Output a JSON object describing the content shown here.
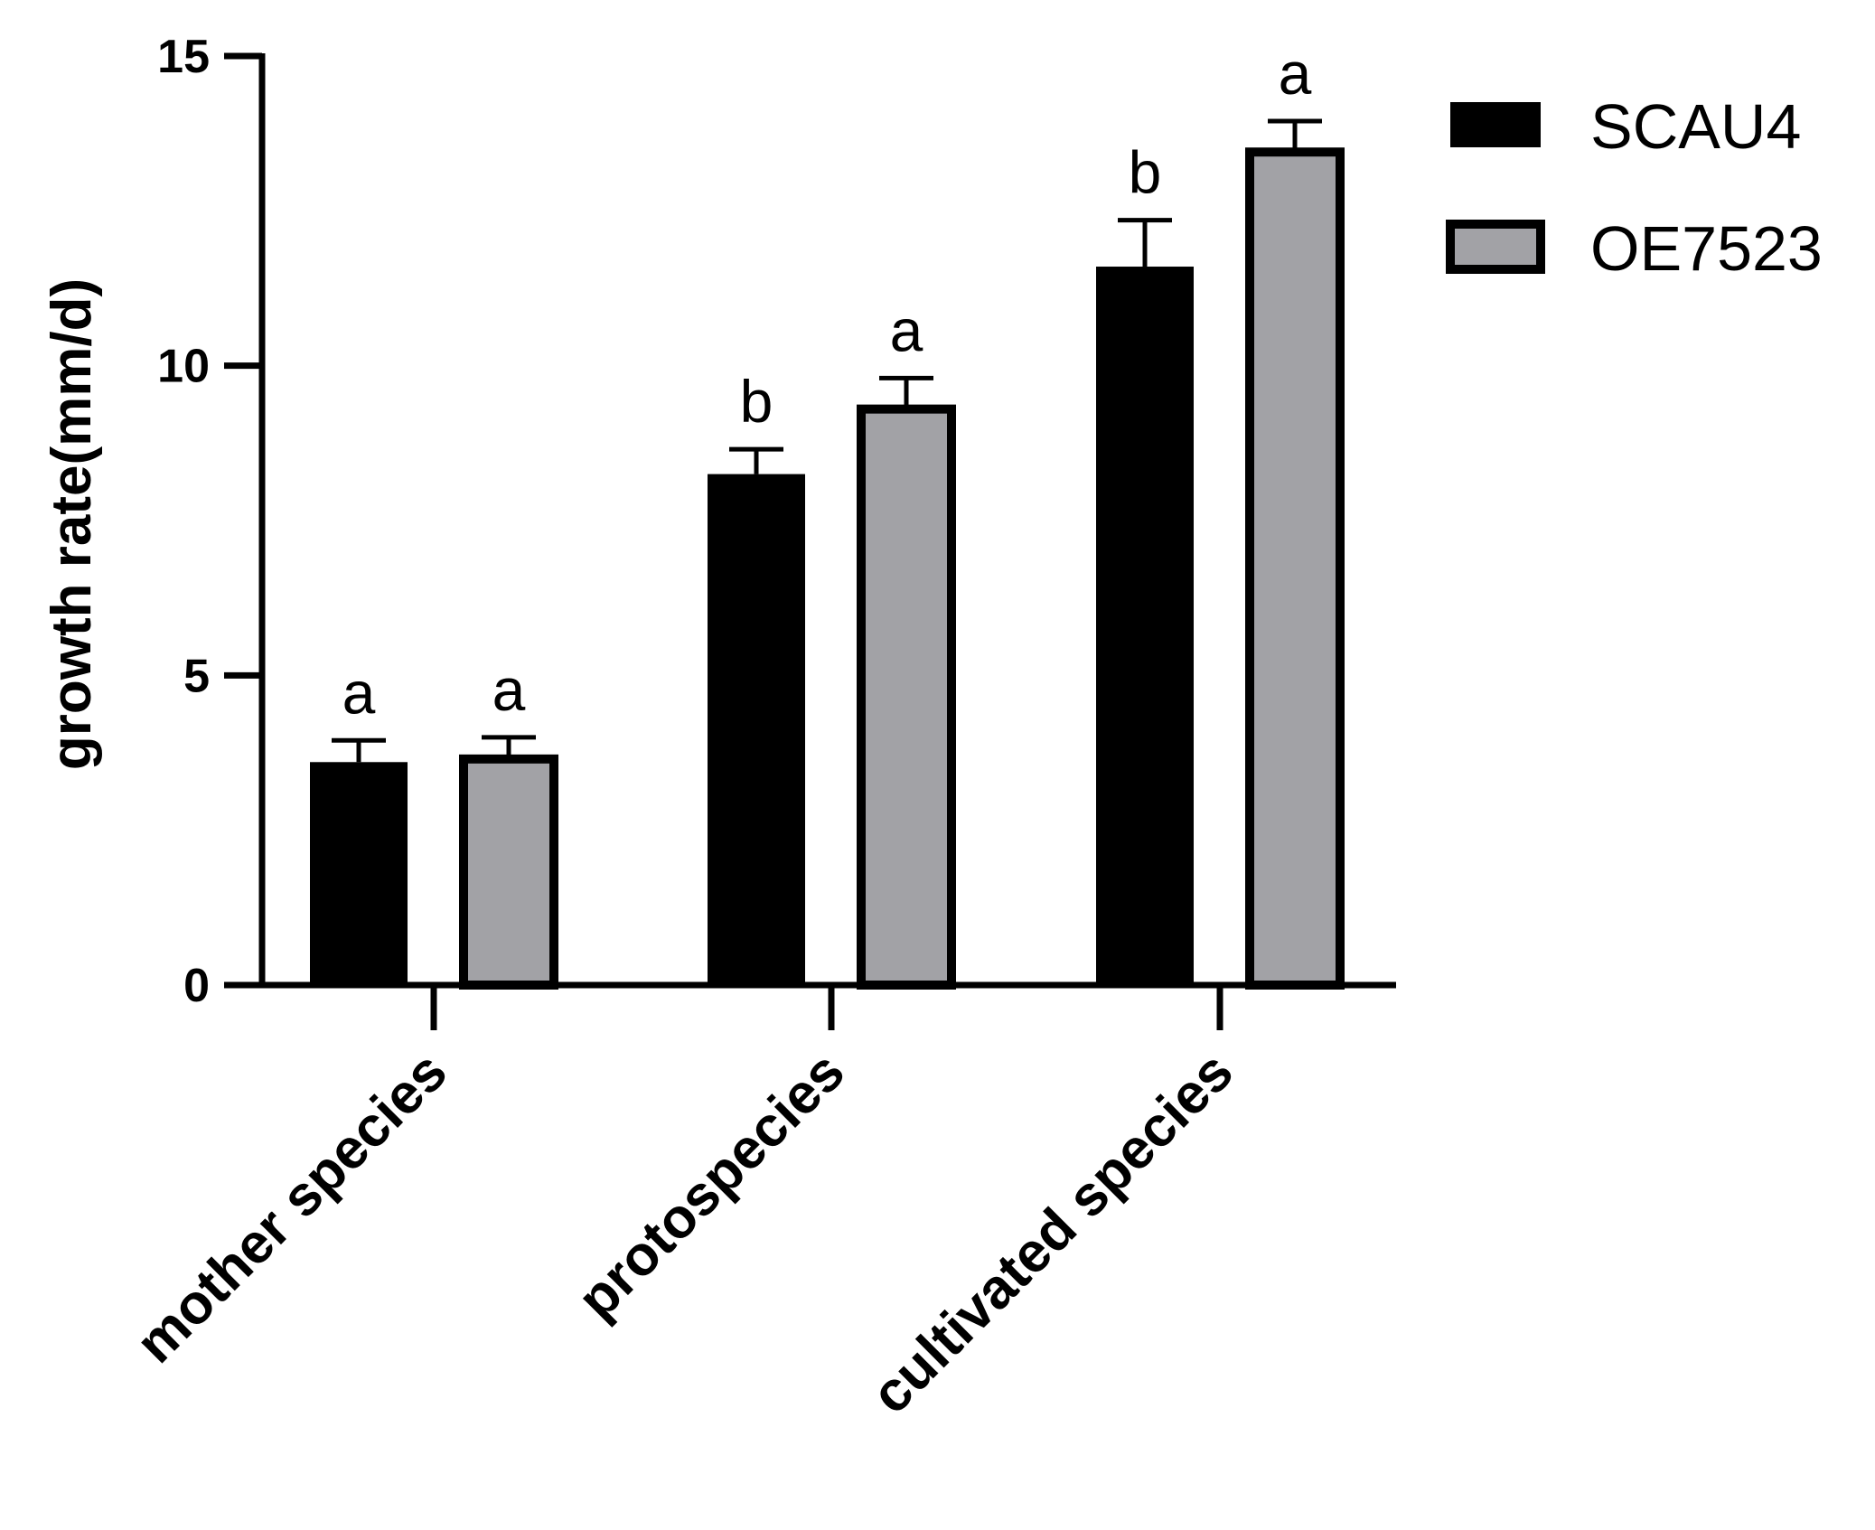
{
  "chart_data": {
    "type": "bar",
    "title": "",
    "xlabel": "",
    "ylabel": "growth rate(mm/d)",
    "ylim": [
      0,
      15
    ],
    "yticks": [
      0,
      5,
      10,
      15
    ],
    "categories": [
      "mother species",
      "protospecies",
      "cultivated species"
    ],
    "series": [
      {
        "name": "SCAU4",
        "color": "#000000",
        "values": [
          3.6,
          8.25,
          11.6
        ],
        "errors": [
          0.35,
          0.4,
          0.75
        ],
        "significance": [
          "a",
          "b",
          "b"
        ]
      },
      {
        "name": "OE7523",
        "color": "#a2a2a6",
        "values": [
          3.65,
          9.3,
          13.45
        ],
        "errors": [
          0.35,
          0.5,
          0.5
        ],
        "significance": [
          "a",
          "a",
          "a"
        ]
      }
    ],
    "legend": "top-right"
  }
}
